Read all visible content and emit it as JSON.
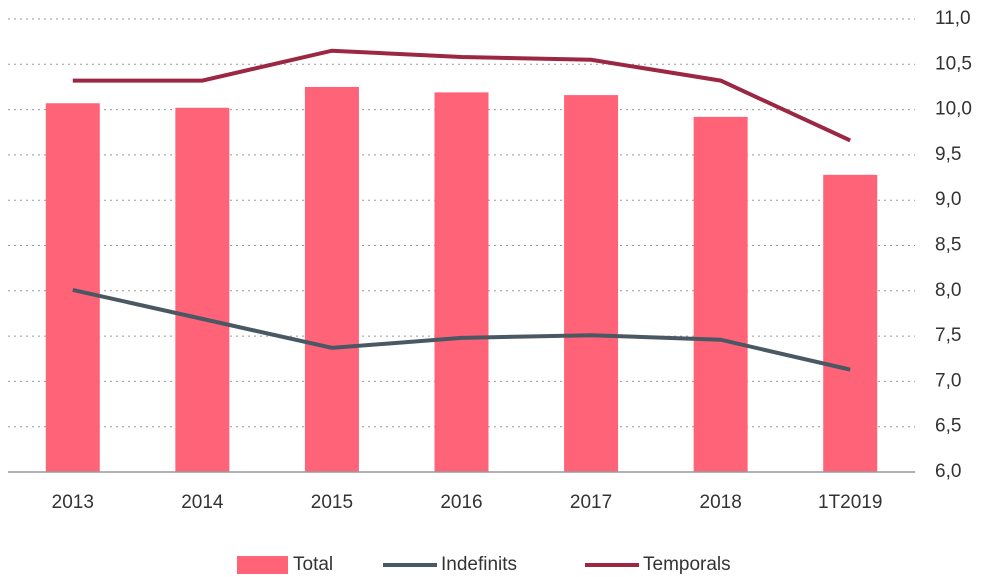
{
  "chart_data": {
    "type": "bar",
    "categories": [
      "2013",
      "2014",
      "2015",
      "2016",
      "2017",
      "2018",
      "1T2019"
    ],
    "series": [
      {
        "name": "Total",
        "type": "bar",
        "color": "#ff6378",
        "values": [
          10.07,
          10.02,
          10.25,
          10.19,
          10.16,
          9.92,
          9.28
        ]
      },
      {
        "name": "Indefinits",
        "type": "line",
        "color": "#4a5863",
        "values": [
          8.01,
          7.69,
          7.37,
          7.48,
          7.51,
          7.46,
          7.13
        ]
      },
      {
        "name": "Temporals",
        "type": "line",
        "color": "#9b2743",
        "values": [
          10.32,
          10.32,
          10.65,
          10.58,
          10.55,
          10.32,
          9.66
        ]
      }
    ],
    "ylim": [
      6,
      11
    ],
    "yticks": [
      {
        "value": 6,
        "label": "6,0"
      },
      {
        "value": 6.5,
        "label": "6,5"
      },
      {
        "value": 7,
        "label": "7,0"
      },
      {
        "value": 7.5,
        "label": "7,5"
      },
      {
        "value": 8,
        "label": "8,0"
      },
      {
        "value": 8.5,
        "label": "8,5"
      },
      {
        "value": 9,
        "label": "9,0"
      },
      {
        "value": 9.5,
        "label": "9,5"
      },
      {
        "value": 10,
        "label": "10,0"
      },
      {
        "value": 10.5,
        "label": "10,5"
      },
      {
        "value": 11,
        "label": "11,0"
      }
    ],
    "grid": true,
    "legend": "bottom"
  }
}
